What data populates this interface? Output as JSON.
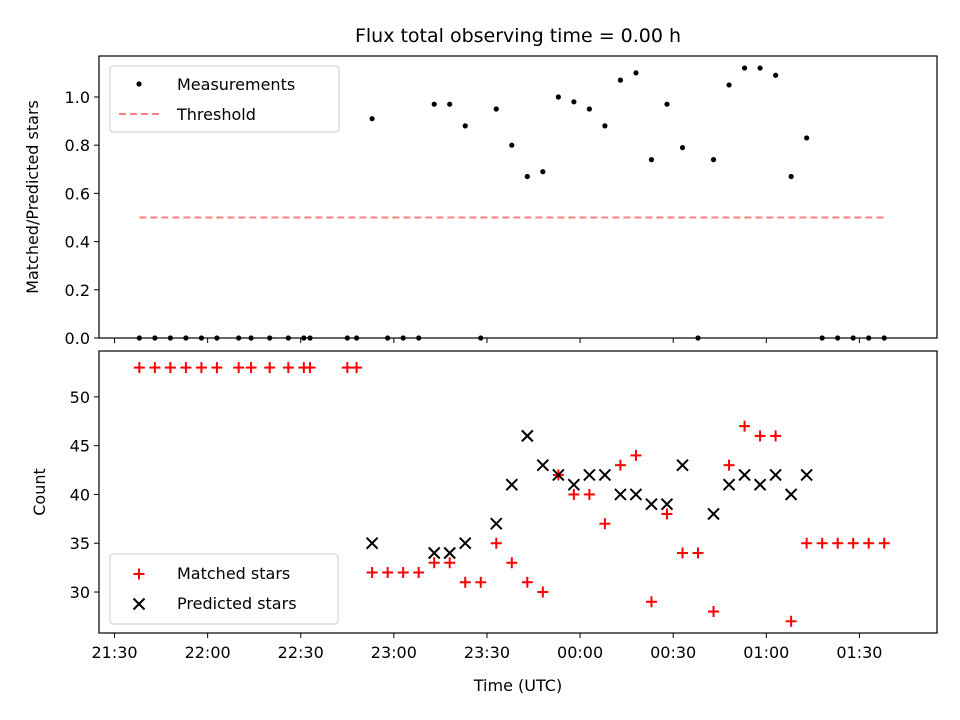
{
  "chart_data": [
    {
      "type": "scatter",
      "title": "Flux total observing time = 0.00 h",
      "xlabel": "",
      "ylabel": "Matched/Predicted stars",
      "xlim": [
        "21:25",
        "01:55"
      ],
      "ylim": [
        0,
        1.17
      ],
      "yticks": [
        "0.0",
        "0.2",
        "0.4",
        "0.6",
        "0.8",
        "1.0"
      ],
      "legend": {
        "position": "top-left",
        "entries": [
          "Measurements",
          "Threshold"
        ]
      },
      "series": [
        {
          "name": "Measurements",
          "color": "#000000",
          "marker": "dot",
          "x": [
            "21:38",
            "21:43",
            "21:48",
            "21:53",
            "21:58",
            "22:03",
            "22:10",
            "22:14",
            "22:20",
            "22:26",
            "22:31",
            "22:33",
            "22:45",
            "22:48",
            "22:53",
            "22:58",
            "23:03",
            "23:08",
            "23:13",
            "23:18",
            "23:23",
            "23:28",
            "23:33",
            "23:38",
            "23:43",
            "23:48",
            "23:53",
            "23:58",
            "24:03",
            "24:08",
            "24:13",
            "24:18",
            "24:23",
            "24:28",
            "24:33",
            "24:38",
            "24:43",
            "24:48",
            "24:53",
            "24:58",
            "25:03",
            "25:08",
            "25:13",
            "25:18",
            "25:23",
            "25:28",
            "25:33",
            "25:38"
          ],
          "y": [
            0,
            0,
            0,
            0,
            0,
            0,
            0,
            0,
            0,
            0,
            0,
            0,
            0,
            0,
            0.91,
            0,
            0,
            0,
            0.97,
            0.97,
            0.88,
            0,
            0.95,
            0.8,
            0.67,
            0.69,
            1.0,
            0.98,
            0.95,
            0.88,
            1.07,
            1.1,
            0.74,
            0.97,
            0.79,
            0,
            0.74,
            1.05,
            1.12,
            1.12,
            1.09,
            0.67,
            0.83,
            0,
            0,
            0,
            0,
            0
          ]
        },
        {
          "name": "Threshold",
          "color": "#ff8080",
          "line": "dashed",
          "x": [
            "21:38",
            "25:38"
          ],
          "y": [
            0.5,
            0.5
          ]
        }
      ]
    },
    {
      "type": "scatter",
      "title": "",
      "xlabel": "Time (UTC)",
      "ylabel": "Count",
      "xlim": [
        "21:25",
        "01:55"
      ],
      "xticks": [
        "21:30",
        "22:00",
        "22:30",
        "23:00",
        "23:30",
        "00:00",
        "00:30",
        "01:00",
        "01:30"
      ],
      "ylim": [
        25.8,
        54.7
      ],
      "yticks": [
        "30",
        "35",
        "40",
        "45",
        "50"
      ],
      "legend": {
        "position": "bottom-left",
        "entries": [
          "Matched stars",
          "Predicted stars"
        ]
      },
      "series": [
        {
          "name": "Matched stars",
          "color": "#ff0000",
          "marker": "plus",
          "x": [
            "21:38",
            "21:43",
            "21:48",
            "21:53",
            "21:58",
            "22:03",
            "22:10",
            "22:14",
            "22:20",
            "22:26",
            "22:31",
            "22:33",
            "22:45",
            "22:48",
            "22:53",
            "22:58",
            "23:03",
            "23:08",
            "23:13",
            "23:18",
            "23:23",
            "23:28",
            "23:33",
            "23:38",
            "23:43",
            "23:48",
            "23:53",
            "23:58",
            "24:03",
            "24:08",
            "24:13",
            "24:18",
            "24:23",
            "24:28",
            "24:33",
            "24:38",
            "24:43",
            "24:48",
            "24:53",
            "24:58",
            "25:03",
            "25:08",
            "25:13",
            "25:18",
            "25:23",
            "25:28",
            "25:33",
            "25:38"
          ],
          "y": [
            53,
            53,
            53,
            53,
            53,
            53,
            53,
            53,
            53,
            53,
            53,
            53,
            53,
            53,
            32,
            32,
            32,
            32,
            33,
            33,
            31,
            31,
            35,
            33,
            31,
            30,
            42,
            40,
            40,
            37,
            43,
            44,
            29,
            38,
            34,
            34,
            28,
            43,
            47,
            46,
            46,
            27,
            35,
            35,
            35,
            35,
            35,
            35
          ]
        },
        {
          "name": "Predicted stars",
          "color": "#000000",
          "marker": "x",
          "x": [
            "22:53",
            "23:13",
            "23:18",
            "23:23",
            "23:33",
            "23:38",
            "23:43",
            "23:48",
            "23:53",
            "23:58",
            "24:03",
            "24:08",
            "24:13",
            "24:18",
            "24:23",
            "24:28",
            "24:33",
            "24:43",
            "24:48",
            "24:53",
            "24:58",
            "25:03",
            "25:08",
            "25:13"
          ],
          "y": [
            35,
            34,
            34,
            35,
            37,
            41,
            46,
            43,
            42,
            41,
            42,
            42,
            40,
            40,
            39,
            39,
            43,
            38,
            41,
            42,
            41,
            42,
            40,
            42
          ]
        }
      ]
    }
  ]
}
